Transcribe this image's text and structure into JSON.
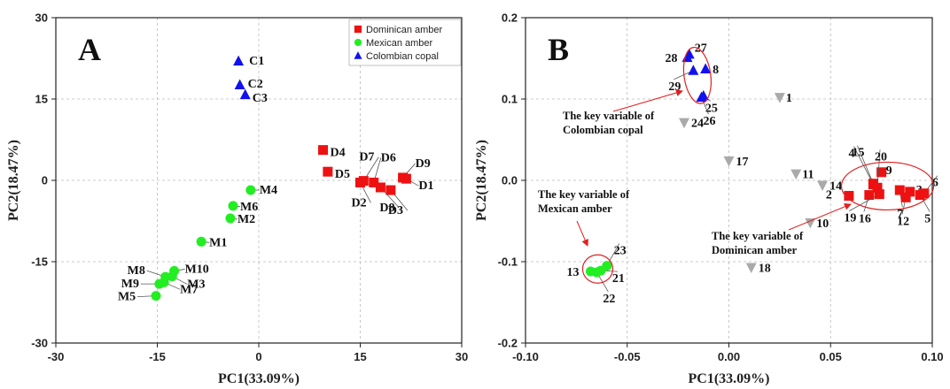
{
  "chart_data": [
    {
      "type": "scatter",
      "panel": "A",
      "xlabel": "PC1(33.09%)",
      "ylabel": "PC2(18.47%)",
      "xlim": [
        -30,
        30
      ],
      "ylim": [
        -30,
        30
      ],
      "xticks": [
        -30,
        -15,
        0,
        15,
        30
      ],
      "yticks": [
        -30,
        -15,
        0,
        15,
        30
      ],
      "grid": true,
      "legend_position": "top-right",
      "series": [
        {
          "name": "Dominican amber",
          "marker": "square",
          "color": "#ee1111",
          "points": [
            {
              "label": "D1",
              "x": 21.8,
              "y": 0.3
            },
            {
              "label": "D2",
              "x": 15.0,
              "y": -0.4
            },
            {
              "label": "D3",
              "x": 19.5,
              "y": -1.8
            },
            {
              "label": "D4",
              "x": 9.5,
              "y": 5.6
            },
            {
              "label": "D5",
              "x": 10.2,
              "y": 1.6
            },
            {
              "label": "D6",
              "x": 17.0,
              "y": -0.4
            },
            {
              "label": "D7",
              "x": 15.5,
              "y": -0.1
            },
            {
              "label": "D8",
              "x": 18.0,
              "y": -1.3
            },
            {
              "label": "D9",
              "x": 21.3,
              "y": 0.5
            }
          ]
        },
        {
          "name": "Mexican amber",
          "marker": "circle",
          "color": "#22ee22",
          "points": [
            {
              "label": "M1",
              "x": -8.5,
              "y": -11.3
            },
            {
              "label": "M2",
              "x": -4.2,
              "y": -7.0
            },
            {
              "label": "M3",
              "x": -12.8,
              "y": -17.7
            },
            {
              "label": "M4",
              "x": -1.2,
              "y": -1.8
            },
            {
              "label": "M5",
              "x": -15.2,
              "y": -21.3
            },
            {
              "label": "M6",
              "x": -3.8,
              "y": -4.7
            },
            {
              "label": "M7",
              "x": -14.0,
              "y": -18.8
            },
            {
              "label": "M8",
              "x": -13.8,
              "y": -17.8
            },
            {
              "label": "M9",
              "x": -14.7,
              "y": -19.1
            },
            {
              "label": "M10",
              "x": -12.5,
              "y": -16.7
            }
          ]
        },
        {
          "name": "Colombian copal",
          "marker": "triangle",
          "color": "#1111ee",
          "points": [
            {
              "label": "C1",
              "x": -3.0,
              "y": 22.0
            },
            {
              "label": "C2",
              "x": -2.8,
              "y": 17.6
            },
            {
              "label": "C3",
              "x": -2.0,
              "y": 15.8
            }
          ]
        }
      ]
    },
    {
      "type": "scatter",
      "panel": "B",
      "xlabel": "PC1(33.09%)",
      "ylabel": "PC2(18.47%)",
      "xlim": [
        -0.1,
        0.1
      ],
      "ylim": [
        -0.2,
        0.2
      ],
      "xticks": [
        "-0.10",
        "-0.05",
        "0.00",
        "0.05",
        "0.10"
      ],
      "yticks": [
        "-0.2",
        "-0.1",
        "0.0",
        "0.1",
        "0.2"
      ],
      "grid": true,
      "groups": [
        {
          "marker": "square",
          "color": "#ee1111",
          "points": [
            {
              "label": "2",
              "x": 0.059,
              "y": -0.019
            },
            {
              "label": "3",
              "x": 0.089,
              "y": -0.014
            },
            {
              "label": "4",
              "x": 0.071,
              "y": -0.005
            },
            {
              "label": "5",
              "x": 0.094,
              "y": -0.018
            },
            {
              "label": "6",
              "x": 0.096,
              "y": -0.016
            },
            {
              "label": "7",
              "x": 0.084,
              "y": -0.012
            },
            {
              "label": "9",
              "x": 0.075,
              "y": 0.01
            },
            {
              "label": "12",
              "x": 0.087,
              "y": -0.021
            },
            {
              "label": "15",
              "x": 0.071,
              "y": -0.004
            },
            {
              "label": "16",
              "x": 0.069,
              "y": -0.018
            },
            {
              "label": "19",
              "x": 0.074,
              "y": -0.017
            },
            {
              "label": "20",
              "x": 0.073,
              "y": -0.009
            }
          ]
        },
        {
          "marker": "circle",
          "color": "#22ee22",
          "points": [
            {
              "label": "13",
              "x": -0.068,
              "y": -0.112
            },
            {
              "label": "21",
              "x": -0.063,
              "y": -0.111
            },
            {
              "label": "22",
              "x": -0.065,
              "y": -0.113
            },
            {
              "label": "23",
              "x": -0.06,
              "y": -0.105
            }
          ]
        },
        {
          "marker": "triangle",
          "color": "#1111ee",
          "points": [
            {
              "label": "8",
              "x": -0.0115,
              "y": 0.137
            },
            {
              "label": "25",
              "x": -0.0125,
              "y": 0.104
            },
            {
              "label": "26",
              "x": -0.0135,
              "y": 0.102
            },
            {
              "label": "27",
              "x": -0.0195,
              "y": 0.155
            },
            {
              "label": "28",
              "x": -0.0205,
              "y": 0.151
            },
            {
              "label": "29",
              "x": -0.0175,
              "y": 0.135
            }
          ]
        },
        {
          "marker": "triangle-down",
          "color": "#aaaaaa",
          "points": [
            {
              "label": "1",
              "x": 0.025,
              "y": 0.102
            },
            {
              "label": "10",
              "x": 0.04,
              "y": -0.052
            },
            {
              "label": "11",
              "x": 0.033,
              "y": 0.008
            },
            {
              "label": "14",
              "x": 0.046,
              "y": -0.006
            },
            {
              "label": "17",
              "x": 0.0,
              "y": 0.024
            },
            {
              "label": "18",
              "x": 0.011,
              "y": -0.107
            },
            {
              "label": "24",
              "x": -0.022,
              "y": 0.071
            }
          ]
        }
      ],
      "annotations": [
        {
          "lines": [
            "The key variable of",
            "Colombian copal"
          ]
        },
        {
          "lines": [
            "The key variable of",
            "Mexican amber"
          ]
        },
        {
          "lines": [
            "The key variable of",
            "Dominican amber"
          ]
        }
      ]
    }
  ]
}
